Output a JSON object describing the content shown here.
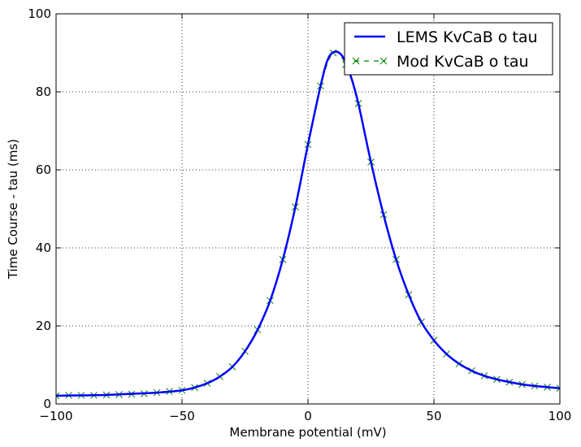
{
  "chart_data": {
    "type": "line",
    "xlabel": "Membrane potential (mV)",
    "ylabel": "Time Course - tau (ms)",
    "xlim": [
      -100,
      100
    ],
    "ylim": [
      0,
      100
    ],
    "xticks": [
      -100,
      -50,
      0,
      50,
      100
    ],
    "xtick_labels": [
      "−100",
      "−50",
      "0",
      "50",
      "100"
    ],
    "yticks": [
      0,
      20,
      40,
      60,
      80,
      100
    ],
    "ytick_labels": [
      "0",
      "20",
      "40",
      "60",
      "80",
      "100"
    ],
    "grid": true,
    "legend_position": "top-right",
    "series": [
      {
        "name": "LEMS KvCaB o tau",
        "style": "solid",
        "color": "#0000ff",
        "x": [
          -100,
          -90,
          -80,
          -70,
          -60,
          -50,
          -45,
          -40,
          -35,
          -30,
          -25,
          -20,
          -15,
          -10,
          -5,
          0,
          5,
          8,
          11,
          14,
          17,
          20,
          25,
          30,
          35,
          40,
          45,
          50,
          55,
          60,
          65,
          70,
          75,
          80,
          85,
          90,
          95,
          100
        ],
        "y": [
          2.1,
          2.2,
          2.3,
          2.6,
          2.9,
          3.5,
          4.2,
          5.3,
          7.0,
          9.5,
          13.5,
          19.0,
          26.5,
          37.0,
          50.5,
          66.5,
          81.5,
          88.5,
          90.3,
          88.8,
          84.0,
          77.0,
          62.0,
          48.5,
          37.0,
          28.0,
          21.0,
          16.3,
          12.8,
          10.3,
          8.5,
          7.2,
          6.3,
          5.6,
          5.0,
          4.6,
          4.3,
          4.0
        ]
      },
      {
        "name": "Mod KvCaB o tau",
        "style": "dashed-x",
        "color": "#008000",
        "x": [
          -100,
          -95,
          -90,
          -85,
          -80,
          -75,
          -70,
          -65,
          -60,
          -55,
          -50,
          -45,
          -40,
          -35,
          -30,
          -25,
          -20,
          -15,
          -10,
          -5,
          0,
          5,
          10,
          15,
          20,
          25,
          30,
          35,
          40,
          45,
          50,
          55,
          60,
          65,
          70,
          75,
          80,
          85,
          90,
          95,
          100
        ],
        "y": [
          2.1,
          2.2,
          2.2,
          2.2,
          2.3,
          2.4,
          2.5,
          2.6,
          2.9,
          3.2,
          3.5,
          4.2,
          5.3,
          7.0,
          9.5,
          13.5,
          19.0,
          26.5,
          37.0,
          50.5,
          66.5,
          81.5,
          90.0,
          87.0,
          77.0,
          62.0,
          48.5,
          37.0,
          28.0,
          21.0,
          16.3,
          12.8,
          10.3,
          8.5,
          7.2,
          6.3,
          5.6,
          5.0,
          4.6,
          4.3,
          4.0
        ]
      }
    ]
  }
}
